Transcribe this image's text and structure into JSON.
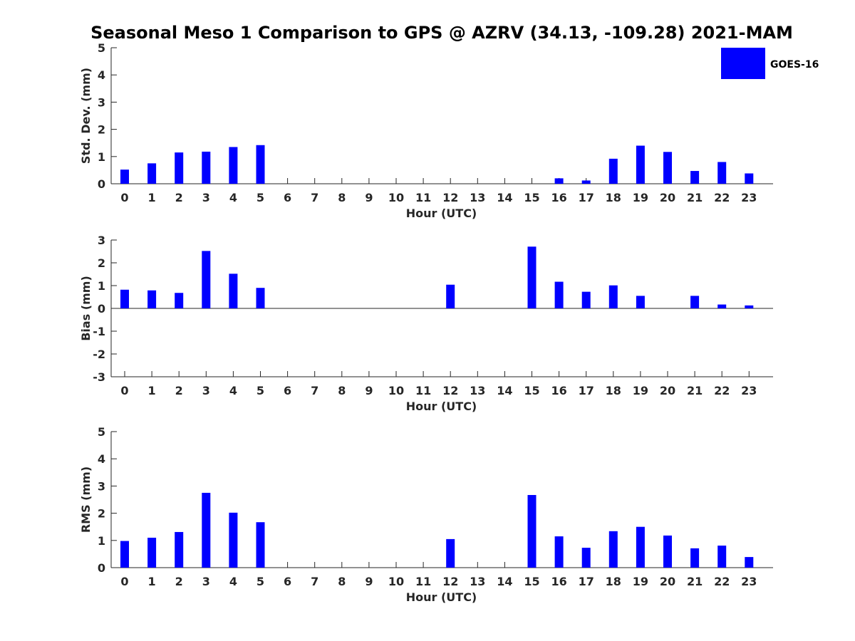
{
  "chart_data": {
    "type": "bar",
    "title": "Seasonal Meso 1 Comparison to GPS @ AZRV (34.13, -109.28) 2021-MAM",
    "legend": {
      "label": "GOES-16",
      "color": "#0000ff",
      "placement": "top-right"
    },
    "categories": [
      "0",
      "1",
      "2",
      "3",
      "4",
      "5",
      "6",
      "7",
      "8",
      "9",
      "10",
      "11",
      "12",
      "13",
      "14",
      "15",
      "16",
      "17",
      "18",
      "19",
      "20",
      "21",
      "22",
      "23"
    ],
    "panels": [
      {
        "name": "std-dev",
        "ylabel": "Std. Dev. (mm)",
        "xlabel": "Hour (UTC)",
        "ylim": [
          0,
          5
        ],
        "yticks": [
          "0",
          "1",
          "2",
          "3",
          "4",
          "5"
        ],
        "series": [
          {
            "name": "GOES-16",
            "values": [
              0.52,
              0.75,
              1.15,
              1.18,
              1.35,
              1.42,
              null,
              null,
              null,
              null,
              null,
              null,
              null,
              null,
              null,
              null,
              0.2,
              0.12,
              0.92,
              1.4,
              1.17,
              0.47,
              0.8,
              0.38
            ]
          }
        ]
      },
      {
        "name": "bias",
        "ylabel": "Bias (mm)",
        "xlabel": "Hour (UTC)",
        "ylim": [
          -3,
          3
        ],
        "yticks": [
          "-3",
          "-2",
          "-1",
          "0",
          "1",
          "2",
          "3"
        ],
        "series": [
          {
            "name": "GOES-16",
            "values": [
              0.82,
              0.79,
              0.68,
              2.52,
              1.52,
              0.9,
              null,
              null,
              null,
              null,
              null,
              null,
              1.04,
              null,
              null,
              2.71,
              1.17,
              0.73,
              1.01,
              0.55,
              null,
              0.55,
              0.17,
              0.13
            ]
          }
        ]
      },
      {
        "name": "rms",
        "ylabel": "RMS (mm)",
        "xlabel": "Hour (UTC)",
        "ylim": [
          0,
          5
        ],
        "yticks": [
          "0",
          "1",
          "2",
          "3",
          "4",
          "5"
        ],
        "series": [
          {
            "name": "GOES-16",
            "values": [
              0.98,
              1.1,
              1.31,
              2.75,
              2.02,
              1.67,
              null,
              null,
              null,
              null,
              null,
              null,
              1.05,
              null,
              null,
              2.67,
              1.15,
              0.73,
              1.34,
              1.5,
              1.18,
              0.71,
              0.81,
              0.39
            ]
          }
        ]
      }
    ]
  }
}
